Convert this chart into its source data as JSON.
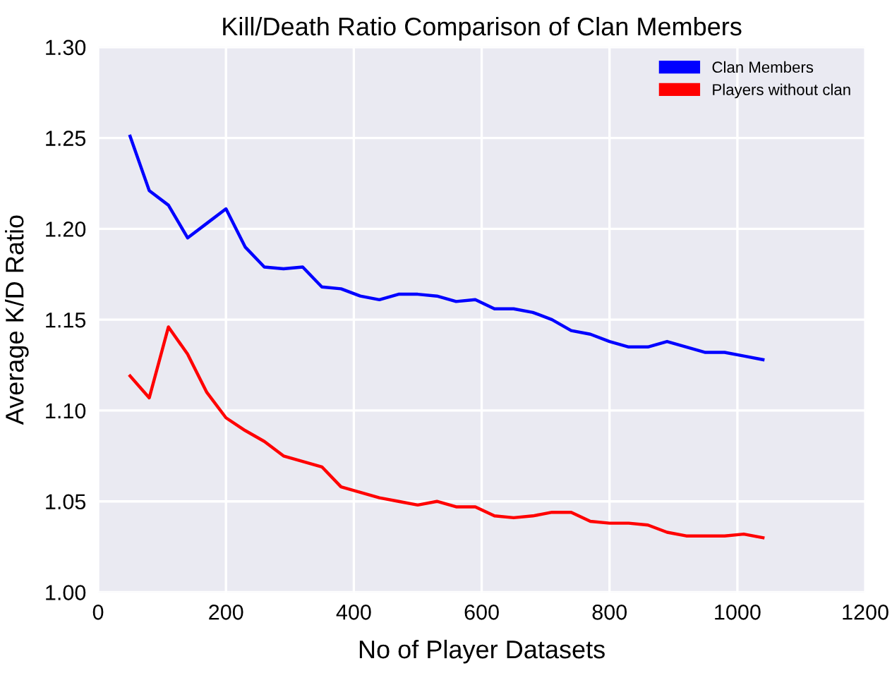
{
  "chart_data": {
    "type": "line",
    "title": "Kill/Death Ratio Comparison of Clan Members",
    "xlabel": "No of Player Datasets",
    "ylabel": "Average K/D Ratio",
    "x": [
      50,
      80,
      110,
      140,
      170,
      200,
      230,
      260,
      290,
      320,
      350,
      380,
      410,
      440,
      470,
      500,
      530,
      560,
      590,
      620,
      650,
      680,
      710,
      740,
      770,
      800,
      830,
      860,
      890,
      920,
      950,
      980,
      1010,
      1040
    ],
    "series": [
      {
        "name": "Clan Members",
        "color": "#0000ff",
        "values": [
          1.251,
          1.221,
          1.213,
          1.195,
          1.203,
          1.211,
          1.19,
          1.179,
          1.178,
          1.179,
          1.168,
          1.167,
          1.163,
          1.161,
          1.164,
          1.164,
          1.163,
          1.16,
          1.161,
          1.156,
          1.156,
          1.154,
          1.15,
          1.144,
          1.142,
          1.138,
          1.135,
          1.135,
          1.138,
          1.135,
          1.132,
          1.132,
          1.13,
          1.128
        ]
      },
      {
        "name": "Players without clan",
        "color": "#ff0000",
        "values": [
          1.119,
          1.107,
          1.146,
          1.131,
          1.11,
          1.096,
          1.089,
          1.083,
          1.075,
          1.072,
          1.069,
          1.058,
          1.055,
          1.052,
          1.05,
          1.048,
          1.05,
          1.047,
          1.047,
          1.042,
          1.041,
          1.042,
          1.044,
          1.044,
          1.039,
          1.038,
          1.038,
          1.037,
          1.033,
          1.031,
          1.031,
          1.031,
          1.032,
          1.03
        ]
      }
    ],
    "xlim": [
      0,
      1200
    ],
    "xticks": [
      0,
      200,
      400,
      600,
      800,
      1000,
      1200
    ],
    "ylim": [
      1.0,
      1.3
    ],
    "yticks": [
      {
        "value": 1.0,
        "label": "1.00"
      },
      {
        "value": 1.05,
        "label": "1.05"
      },
      {
        "value": 1.1,
        "label": "1.10"
      },
      {
        "value": 1.15,
        "label": "1.15"
      },
      {
        "value": 1.2,
        "label": "1.20"
      },
      {
        "value": 1.25,
        "label": "1.25"
      },
      {
        "value": 1.3,
        "label": "1.30"
      }
    ],
    "grid": true,
    "legend": "top right",
    "marker": "none",
    "line_style": "solid"
  }
}
